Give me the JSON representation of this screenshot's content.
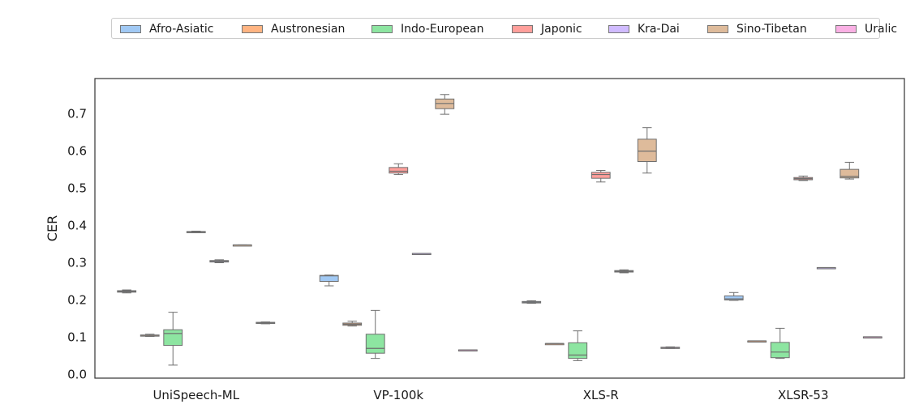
{
  "chart_data": {
    "type": "boxplot",
    "title": "",
    "xlabel": "",
    "ylabel": "CER",
    "ylim": [
      -0.01,
      0.795
    ],
    "yticks": [
      "0.0",
      "0.1",
      "0.2",
      "0.3",
      "0.4",
      "0.5",
      "0.6",
      "0.7"
    ],
    "ytick_values": [
      0.0,
      0.1,
      0.2,
      0.3,
      0.4,
      0.5,
      0.6,
      0.7
    ],
    "categories": [
      "UniSpeech-ML",
      "VP-100k",
      "XLS-R",
      "XLSR-53"
    ],
    "legend_position": "top-center",
    "series": [
      {
        "name": "Afro-Asiatic",
        "color": "#a1c9f4",
        "boxes": [
          {
            "min": 0.219,
            "q1": 0.221,
            "median": 0.223,
            "q3": 0.225,
            "max": 0.227
          },
          {
            "min": 0.238,
            "q1": 0.25,
            "median": 0.265,
            "q3": 0.266,
            "max": 0.267
          },
          {
            "min": 0.191,
            "q1": 0.192,
            "median": 0.194,
            "q3": 0.196,
            "max": 0.198
          },
          {
            "min": 0.199,
            "q1": 0.2,
            "median": 0.203,
            "q3": 0.211,
            "max": 0.22
          }
        ]
      },
      {
        "name": "Austronesian",
        "color": "#ffb482",
        "boxes": [
          {
            "min": 0.102,
            "q1": 0.103,
            "median": 0.105,
            "q3": 0.106,
            "max": 0.108
          },
          {
            "min": 0.13,
            "q1": 0.132,
            "median": 0.135,
            "q3": 0.138,
            "max": 0.143
          },
          {
            "min": 0.083,
            "q1": 0.083,
            "median": 0.083,
            "q3": 0.083,
            "max": 0.083
          },
          {
            "min": 0.089,
            "q1": 0.089,
            "median": 0.09,
            "q3": 0.09,
            "max": 0.09
          }
        ]
      },
      {
        "name": "Indo-European",
        "color": "#8de5a1",
        "boxes": [
          {
            "min": 0.025,
            "q1": 0.078,
            "median": 0.11,
            "q3": 0.12,
            "max": 0.167
          },
          {
            "min": 0.043,
            "q1": 0.057,
            "median": 0.07,
            "q3": 0.108,
            "max": 0.172
          },
          {
            "min": 0.037,
            "q1": 0.043,
            "median": 0.052,
            "q3": 0.085,
            "max": 0.117
          },
          {
            "min": 0.043,
            "q1": 0.045,
            "median": 0.06,
            "q3": 0.086,
            "max": 0.124
          }
        ]
      },
      {
        "name": "Japonic",
        "color": "#ff9f9b",
        "boxes": [
          {
            "min": 0.381,
            "q1": 0.382,
            "median": 0.383,
            "q3": 0.384,
            "max": 0.385
          },
          {
            "min": 0.537,
            "q1": 0.541,
            "median": 0.546,
            "q3": 0.556,
            "max": 0.566
          },
          {
            "min": 0.517,
            "q1": 0.527,
            "median": 0.537,
            "q3": 0.543,
            "max": 0.548
          },
          {
            "min": 0.521,
            "q1": 0.523,
            "median": 0.526,
            "q3": 0.529,
            "max": 0.533
          }
        ]
      },
      {
        "name": "Kra-Dai",
        "color": "#d0bbff",
        "boxes": [
          {
            "min": 0.3,
            "q1": 0.302,
            "median": 0.304,
            "q3": 0.306,
            "max": 0.308
          },
          {
            "min": 0.325,
            "q1": 0.325,
            "median": 0.325,
            "q3": 0.325,
            "max": 0.325
          },
          {
            "min": 0.273,
            "q1": 0.275,
            "median": 0.277,
            "q3": 0.279,
            "max": 0.281
          },
          {
            "min": 0.287,
            "q1": 0.287,
            "median": 0.287,
            "q3": 0.287,
            "max": 0.287
          }
        ]
      },
      {
        "name": "Sino-Tibetan",
        "color": "#debb9b",
        "boxes": [
          {
            "min": 0.348,
            "q1": 0.348,
            "median": 0.348,
            "q3": 0.348,
            "max": 0.348
          },
          {
            "min": 0.699,
            "q1": 0.714,
            "median": 0.728,
            "q3": 0.74,
            "max": 0.752
          },
          {
            "min": 0.541,
            "q1": 0.572,
            "median": 0.6,
            "q3": 0.632,
            "max": 0.663
          },
          {
            "min": 0.525,
            "q1": 0.528,
            "median": 0.532,
            "q3": 0.551,
            "max": 0.57
          }
        ]
      },
      {
        "name": "Uralic",
        "color": "#fab0e4",
        "boxes": [
          {
            "min": 0.136,
            "q1": 0.137,
            "median": 0.138,
            "q3": 0.14,
            "max": 0.141
          },
          {
            "min": 0.066,
            "q1": 0.066,
            "median": 0.066,
            "q3": 0.066,
            "max": 0.066
          },
          {
            "min": 0.07,
            "q1": 0.071,
            "median": 0.072,
            "q3": 0.073,
            "max": 0.074
          },
          {
            "min": 0.101,
            "q1": 0.101,
            "median": 0.101,
            "q3": 0.101,
            "max": 0.101
          }
        ]
      }
    ]
  }
}
